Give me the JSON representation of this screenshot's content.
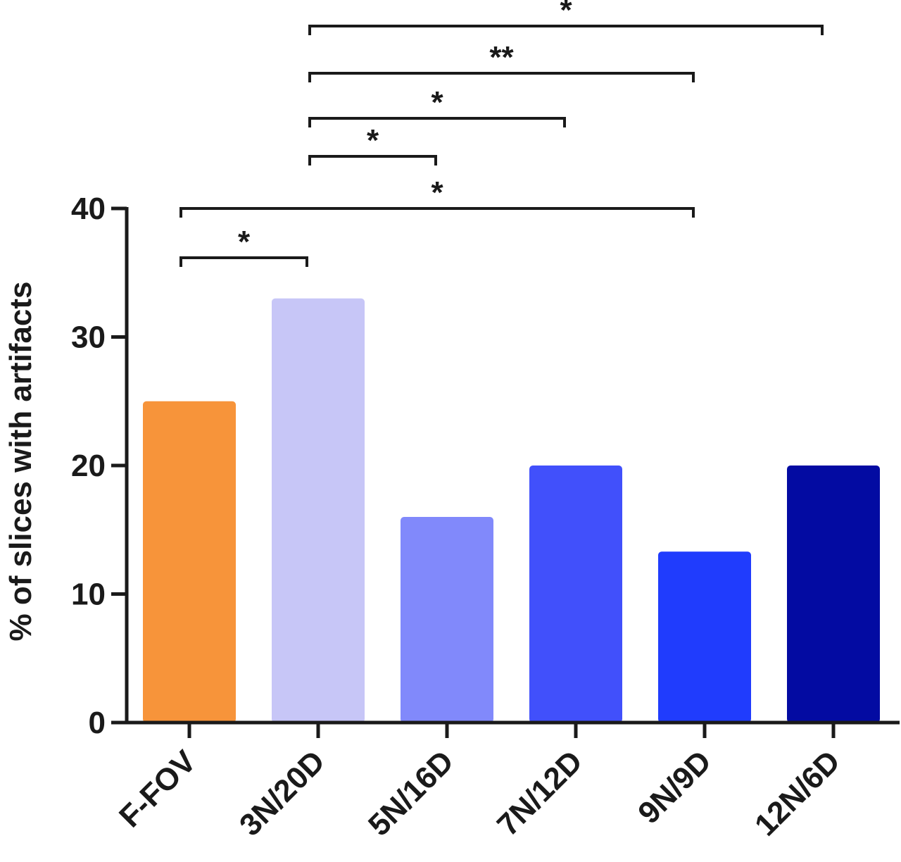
{
  "chart_data": {
    "type": "bar",
    "categories": [
      "F-FOV",
      "3N/20D",
      "5N/16D",
      "7N/12D",
      "9N/9D",
      "12N/6D"
    ],
    "values": [
      25,
      33,
      16,
      20,
      13.3,
      20
    ],
    "colors": [
      "#f7943a",
      "#c7c6f7",
      "#8189fb",
      "#4150fb",
      "#203cfd",
      "#030ba2"
    ],
    "title": "",
    "xlabel": "",
    "ylabel": "% of slices with artifacts",
    "ylim": [
      0,
      40
    ],
    "yticks": [
      "0",
      "10",
      "20",
      "30",
      "40"
    ],
    "grid": false,
    "legend": "none",
    "significance": [
      {
        "from": 0,
        "to": 1,
        "label": "*"
      },
      {
        "from": 0,
        "to": 4,
        "label": "*"
      },
      {
        "from": 1,
        "to": 2,
        "label": "*"
      },
      {
        "from": 1,
        "to": 3,
        "label": "*"
      },
      {
        "from": 1,
        "to": 4,
        "label": "**"
      },
      {
        "from": 1,
        "to": 5,
        "label": "*"
      }
    ]
  }
}
